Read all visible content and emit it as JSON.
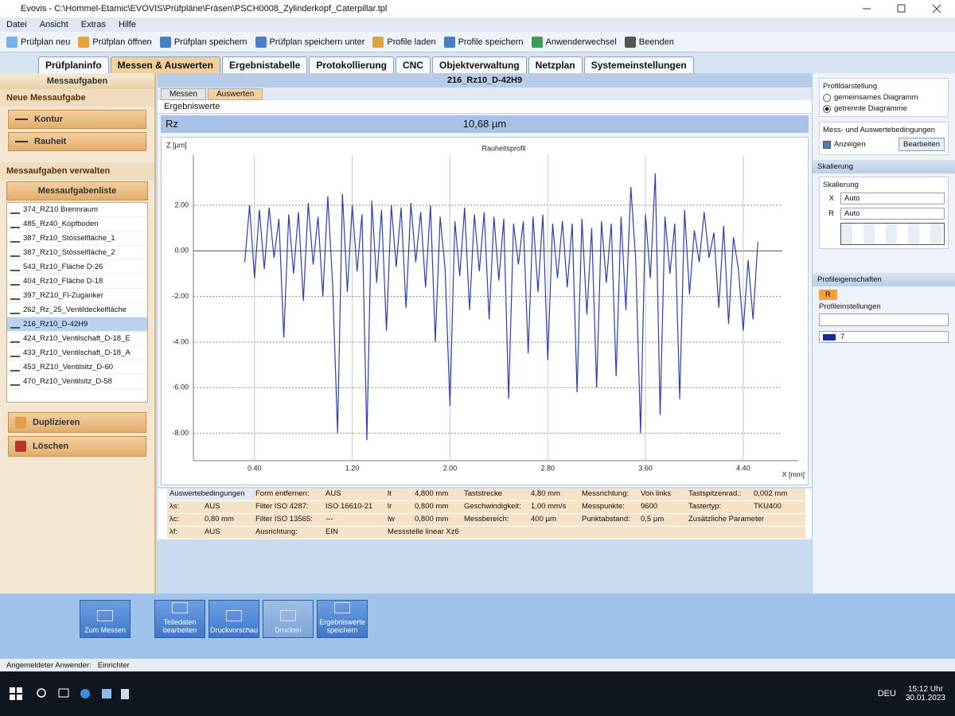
{
  "window": {
    "title": "Evovis - C:\\Hommel-Etamic\\EVOVIS\\Prüfpläne\\Fräsen\\PSCH0008_Zylinderkopf_Caterpillar.tpl"
  },
  "menu": [
    "Datei",
    "Ansicht",
    "Extras",
    "Hilfe"
  ],
  "toolbar": [
    "Prüfplan neu",
    "Prüfplan öffnen",
    "Prüfplan speichern",
    "Prüfplan speichern unter",
    "Profile laden",
    "Profile speichern",
    "Anwenderwechsel",
    "Beenden"
  ],
  "tabs": {
    "items": [
      "Prüfplaninfo",
      "Messen & Auswerten",
      "Ergebnistabelle",
      "Protokollierung",
      "CNC",
      "Objektverwaltung",
      "Netzplan",
      "Systemeinstellungen"
    ],
    "active": 1
  },
  "tasks": {
    "header": "Messaufgaben",
    "new_title": "Neue Messaufgabe",
    "new_buttons": [
      "Kontur",
      "Rauheit"
    ],
    "manage_title": "Messaufgaben verwalten",
    "list_title": "Messaufgabenliste",
    "items": [
      "374_RZ10 Brennraum",
      "485_Rz40_Kopfboden",
      "387_Rz10_Stösselfläche_1",
      "387_Rz10_Stösselfläche_2",
      "543_Rz10_Fläche D-26",
      "404_Rz10_Fläche D-18",
      "397_RZ10_Fl-Zuganker",
      "262_Rz_25_Ventildeckelfläche",
      "216_Rz10_D-42H9",
      "424_Rz10_Ventilschaft_D-18_E",
      "433_Rz10_Ventilschaft_D-18_A",
      "453_RZ10_Ventilsitz_D-60",
      "470_Rz10_Ventilsitz_D-58"
    ],
    "selected": 8,
    "actions": [
      "Duplizieren",
      "Löschen"
    ]
  },
  "view": {
    "task_name": "216_Rz10_D-42H9",
    "subtabs": [
      "Messen",
      "Auswerten"
    ],
    "active_subtab": 1,
    "section": "Ergebniswerte",
    "parameter": "Rz",
    "result": "10,68  µm"
  },
  "conditions": {
    "rows": [
      [
        "Auswertebedingungen",
        "Form entfernen:",
        "AUS",
        "lt",
        "4,800 mm",
        "Taststrecke",
        "4,80 mm",
        "Messrichtung:",
        "Von links",
        "Tastspitzenrad.:",
        "0,002 mm"
      ],
      [
        "λs:",
        "AUS",
        "Filter ISO 4287:",
        "ISO 16610-21",
        "lr",
        "0,800 mm",
        "Geschwindigkeit:",
        "1,00 mm/s",
        "Messpunkte:",
        "9600",
        "Tastertyp:",
        "TKU400"
      ],
      [
        "λc:",
        "0,80 mm",
        "Filter ISO 13565:",
        "---",
        "lw",
        "0,800 mm",
        "Messbereich:",
        "400 µm",
        "Punktabstand:",
        "0,5 µm",
        "Zusätzliche Parameter"
      ],
      [
        "λf:",
        "AUS",
        "Ausrichtung:",
        "EIN",
        "Messstelle linear Xz6"
      ]
    ]
  },
  "side": {
    "display_title": "Profildarstellung",
    "display_options": [
      "gemeinsames Diagramm",
      "getrennte Diagramme"
    ],
    "display_selected": 1,
    "conditions_title": "Mess- und Auswertebedingungen",
    "show": "Anzeigen",
    "show_checked": true,
    "edit": "Bearbeiten",
    "scaling_header": "Skalierung",
    "scaling_title": "Skalierung",
    "x_label": "X",
    "x_value": "Auto",
    "r_label": "R",
    "r_value": "Auto",
    "props_header": "Profileigenschaften",
    "props_tab": "R",
    "props_title": "Profileinstellungen",
    "color_value": "7"
  },
  "actions": [
    "Zum Messen",
    "Teiledaten bearbeiten",
    "Druckvorschau",
    "Drucken",
    "Ergebniswerte speichern"
  ],
  "status": {
    "label": "Angemeldeter Anwender:",
    "user": "Einrichter"
  },
  "taskbar": {
    "language": "DEU",
    "time": "15:12 Uhr",
    "date": "30.01.2023"
  },
  "chart_data": {
    "type": "line",
    "title": "Rauheitsprofil",
    "ylabel": "Z [µm]",
    "xlabel": "X [mm]",
    "xlim": [
      -0.1,
      4.85
    ],
    "ylim": [
      -9.2,
      4.2
    ],
    "xticks": [
      {
        "value": 0.4,
        "label": "0.40"
      },
      {
        "value": 1.2,
        "label": "1.20"
      },
      {
        "value": 2,
        "label": "2.00"
      },
      {
        "value": 2.8,
        "label": "2.80"
      },
      {
        "value": 3.6,
        "label": "3.60"
      },
      {
        "value": 4.4,
        "label": "4.40"
      }
    ],
    "yticks": [
      {
        "value": 2,
        "label": "2.00"
      },
      {
        "value": 0,
        "label": "0.00"
      },
      {
        "value": -2,
        "label": "-2.00"
      },
      {
        "value": -4,
        "label": "-4.00"
      },
      {
        "value": -6,
        "label": "-6.00"
      },
      {
        "value": -8,
        "label": "-8.00"
      }
    ],
    "grid": true,
    "x": [
      0.32,
      0.36,
      0.4,
      0.44,
      0.48,
      0.52,
      0.56,
      0.6,
      0.64,
      0.68,
      0.72,
      0.76,
      0.8,
      0.84,
      0.88,
      0.92,
      0.96,
      1.0,
      1.04,
      1.08,
      1.12,
      1.16,
      1.2,
      1.24,
      1.28,
      1.32,
      1.36,
      1.4,
      1.44,
      1.48,
      1.52,
      1.56,
      1.6,
      1.64,
      1.68,
      1.72,
      1.76,
      1.8,
      1.84,
      1.88,
      1.92,
      1.96,
      2.0,
      2.04,
      2.08,
      2.12,
      2.16,
      2.2,
      2.24,
      2.28,
      2.32,
      2.36,
      2.4,
      2.44,
      2.48,
      2.52,
      2.56,
      2.6,
      2.64,
      2.68,
      2.72,
      2.76,
      2.8,
      2.84,
      2.88,
      2.92,
      2.96,
      3.0,
      3.04,
      3.08,
      3.12,
      3.16,
      3.2,
      3.24,
      3.28,
      3.32,
      3.36,
      3.4,
      3.44,
      3.48,
      3.52,
      3.56,
      3.6,
      3.64,
      3.68,
      3.72,
      3.76,
      3.8,
      3.84,
      3.88,
      3.92,
      3.96,
      4.0,
      4.04,
      4.08,
      4.12,
      4.16,
      4.2,
      4.24,
      4.28,
      4.32,
      4.36,
      4.4,
      4.44,
      4.48,
      4.52
    ],
    "series": [
      {
        "name": "Rauheitsprofil",
        "color": "#2b3fb3",
        "values": [
          -0.5,
          2.0,
          -1.2,
          1.8,
          -0.8,
          1.9,
          -0.3,
          1.4,
          -3.8,
          1.6,
          -1.0,
          1.7,
          -2.2,
          2.1,
          -0.6,
          1.5,
          -2.0,
          2.4,
          -1.5,
          -8.0,
          2.5,
          -1.8,
          2.0,
          -0.9,
          1.6,
          -8.3,
          2.2,
          -1.4,
          1.8,
          -3.5,
          2.0,
          -0.7,
          1.9,
          -2.5,
          2.1,
          -0.5,
          1.7,
          -1.6,
          2.0,
          -4.0,
          1.5,
          -0.8,
          -6.8,
          1.3,
          -1.1,
          1.9,
          -2.6,
          1.6,
          -0.9,
          1.7,
          -3.0,
          1.5,
          -1.3,
          1.4,
          -6.5,
          1.2,
          -0.6,
          1.3,
          -4.5,
          1.5,
          -1.8,
          1.6,
          -4.8,
          1.2,
          -1.2,
          1.3,
          -1.6,
          1.2,
          -6.2,
          1.4,
          -2.8,
          1.0,
          -6.0,
          1.3,
          -1.4,
          1.2,
          -5.5,
          1.5,
          -2.6,
          2.8,
          -0.4,
          -8.0,
          1.6,
          -1.2,
          3.4,
          -7.2,
          1.5,
          -1.0,
          1.2,
          -6.5,
          1.8,
          -1.9,
          0.9,
          -0.5,
          1.7,
          -0.3,
          0.8,
          -2.5,
          1.1,
          -3.2,
          0.6,
          -0.8,
          -3.5,
          -0.4,
          -3.0,
          0.4
        ]
      }
    ]
  }
}
